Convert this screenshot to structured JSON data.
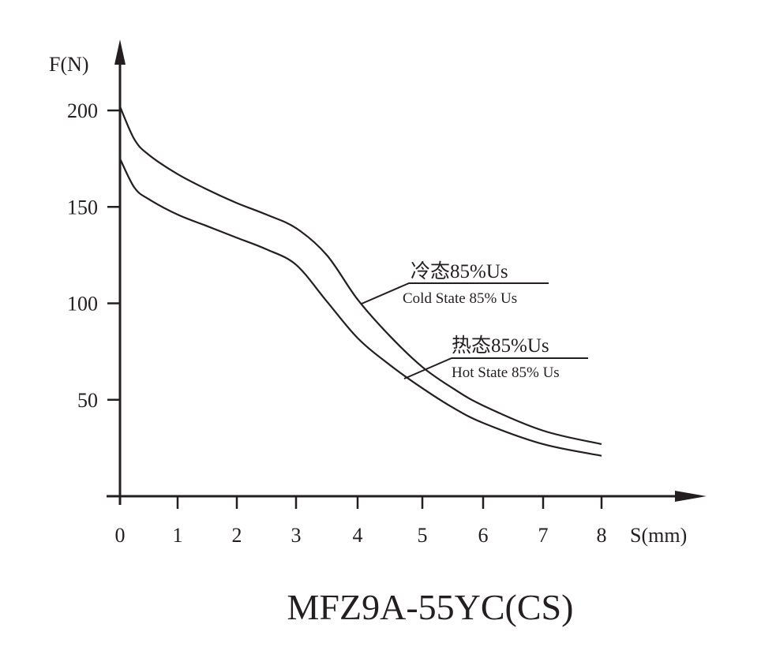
{
  "chart_data": {
    "type": "line",
    "title": "MFZ9A-55YC(CS)",
    "xlabel": "S(mm)",
    "ylabel": "F(N)",
    "xlim": [
      0,
      8
    ],
    "ylim": [
      0,
      200
    ],
    "x_ticks": [
      "0",
      "1",
      "2",
      "3",
      "4",
      "5",
      "6",
      "7",
      "8"
    ],
    "y_ticks": [
      "50",
      "100",
      "150",
      "200"
    ],
    "grid": false,
    "line_color": "#231f20",
    "series": [
      {
        "name": "冷态85%Us",
        "name_en": "Cold State 85% Us",
        "x": [
          0,
          0.25,
          0.5,
          1,
          1.5,
          2,
          2.5,
          3,
          3.5,
          4,
          4.5,
          5,
          5.5,
          6,
          7,
          8
        ],
        "y": [
          202,
          185,
          177,
          167,
          159,
          152,
          146,
          139,
          125,
          102,
          83,
          67,
          56,
          47,
          34,
          27
        ]
      },
      {
        "name": "热态85%Us",
        "name_en": "Hot State 85% Us",
        "x": [
          0,
          0.25,
          0.5,
          1,
          1.5,
          2,
          2.5,
          3,
          3.5,
          4,
          4.5,
          5,
          5.5,
          6,
          7,
          8
        ],
        "y": [
          175,
          160,
          154,
          146,
          140,
          134,
          128,
          120,
          101,
          82,
          68,
          56,
          46,
          38,
          27,
          21
        ]
      }
    ]
  }
}
